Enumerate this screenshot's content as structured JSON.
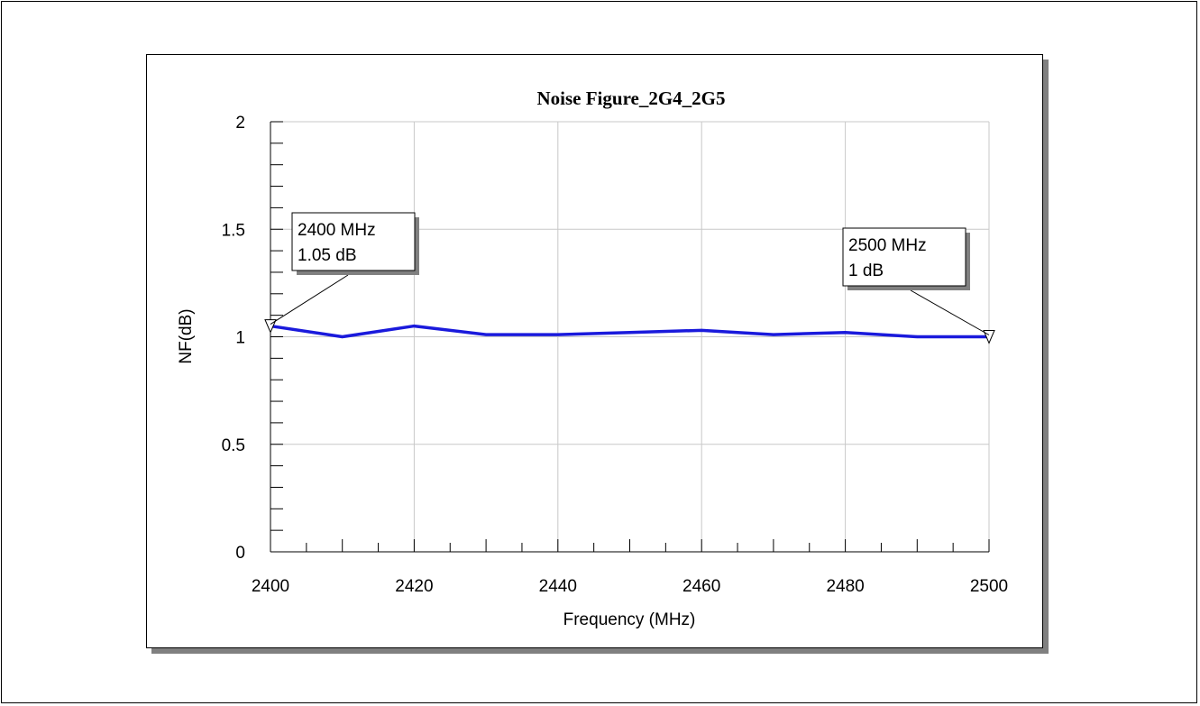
{
  "chart_data": {
    "type": "line",
    "title": "Noise Figure_2G4_2G5",
    "xlabel": "Frequency (MHz)",
    "ylabel": "NF(dB)",
    "xlim": [
      2400,
      2500
    ],
    "ylim": [
      0,
      2
    ],
    "x_ticks": [
      "2400",
      "2420",
      "2440",
      "2460",
      "2480",
      "2500"
    ],
    "y_ticks": [
      "0",
      "0.5",
      "1",
      "1.5",
      "2"
    ],
    "grid": true,
    "series": [
      {
        "color": "#1a1adc",
        "x": [
          2400,
          2410,
          2420,
          2430,
          2440,
          2450,
          2460,
          2470,
          2480,
          2490,
          2500
        ],
        "y": [
          1.05,
          1.0,
          1.05,
          1.01,
          1.01,
          1.02,
          1.03,
          1.01,
          1.02,
          1.0,
          1.0
        ]
      }
    ],
    "markers": [
      {
        "x": 2400,
        "y": 1.05,
        "line1": "2400 MHz",
        "line2": "1.05 dB"
      },
      {
        "x": 2500,
        "y": 1.0,
        "line1": "2500 MHz",
        "line2": "1 dB"
      }
    ]
  }
}
